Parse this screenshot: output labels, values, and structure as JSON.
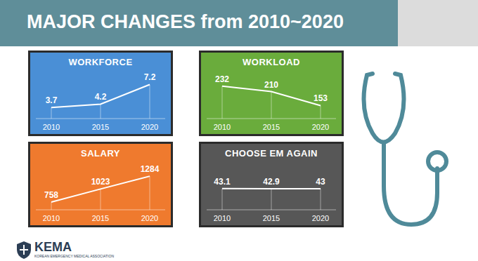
{
  "slide": {
    "title": "MAJOR CHANGES from 2010~2020",
    "logo": "KEMA",
    "logo_subtitle": "KOREAN EMERGENCY MEDICAL ASSOCIATION"
  },
  "chart_data": [
    {
      "type": "line",
      "title": "WORKFORCE",
      "categories": [
        "2010",
        "2015",
        "2020"
      ],
      "values": [
        3.7,
        4.2,
        7.2
      ],
      "color": "#ffffff",
      "ylim": [
        2,
        8
      ],
      "data_labels": true,
      "tick_labels": "x"
    },
    {
      "type": "line",
      "title": "WORKLOAD",
      "categories": [
        "2010",
        "2015",
        "2020"
      ],
      "values": [
        232,
        210,
        153
      ],
      "color": "#ffffff",
      "ylim": [
        100,
        260
      ],
      "data_labels": true,
      "tick_labels": "x"
    },
    {
      "type": "line",
      "title": "SALARY",
      "categories": [
        "2010",
        "2015",
        "2020"
      ],
      "values": [
        758,
        1023,
        1284
      ],
      "color": "#ffffff",
      "ylim": [
        600,
        1400
      ],
      "data_labels": true,
      "tick_labels": "x"
    },
    {
      "type": "line",
      "title": "CHOOSE EM AGAIN",
      "categories": [
        "2010",
        "2015",
        "2020"
      ],
      "values": [
        43.1,
        42.9,
        43
      ],
      "color": "#ffffff",
      "ylim": [
        0,
        80
      ],
      "data_labels": true,
      "tick_labels": "x"
    }
  ]
}
